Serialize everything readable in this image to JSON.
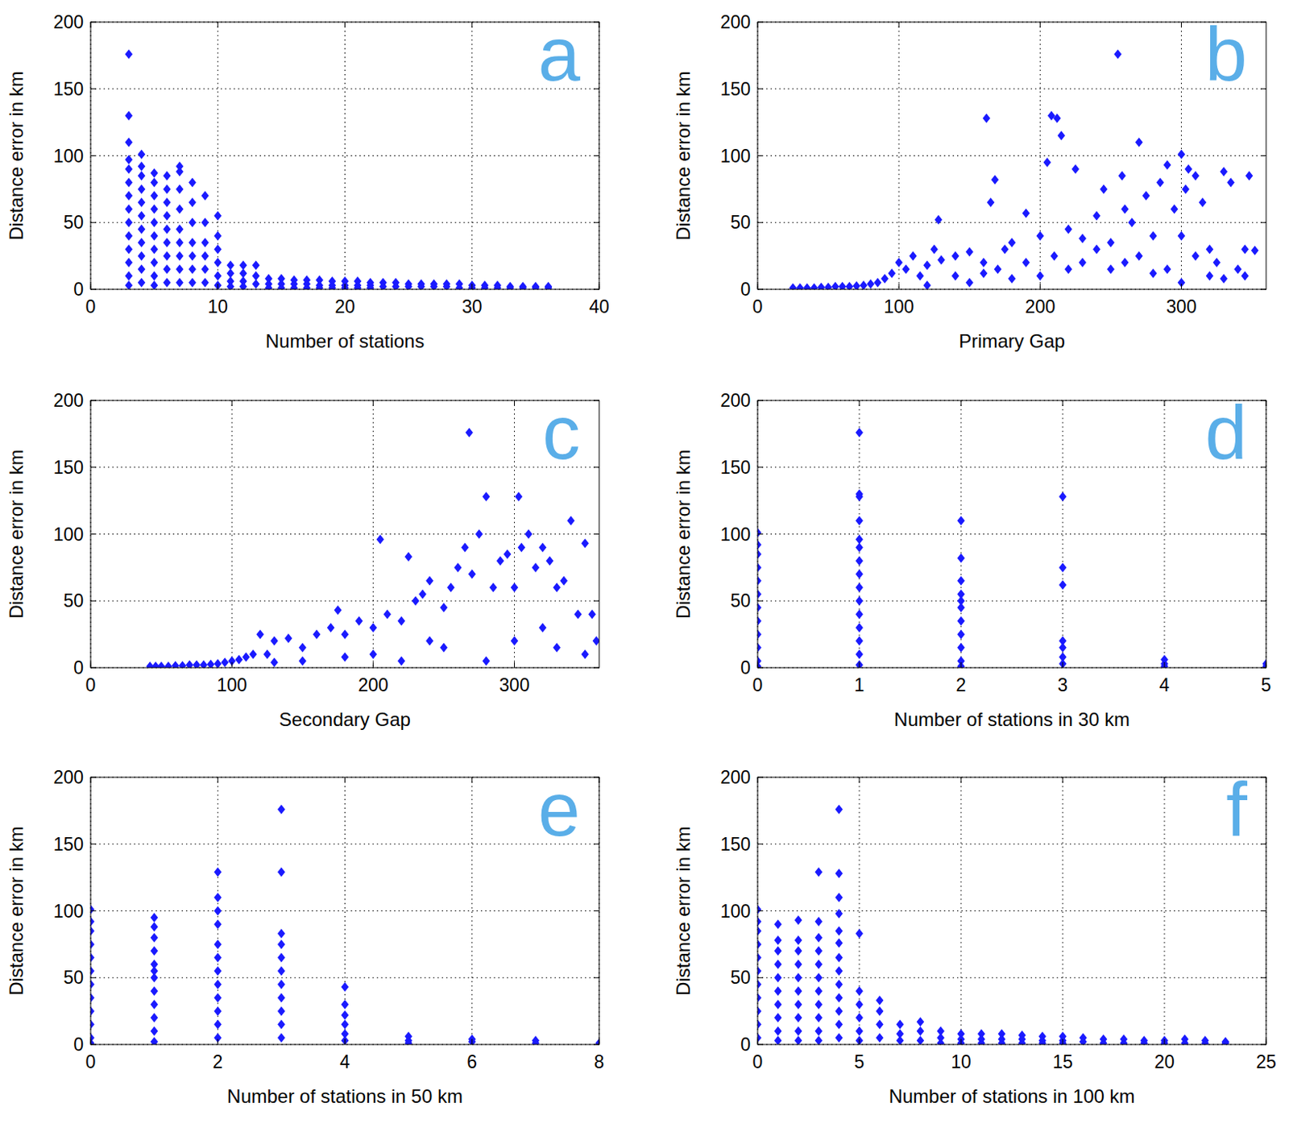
{
  "chart_data": [
    {
      "type": "scatter",
      "title": "a",
      "xlabel": "Number of stations",
      "ylabel": "Distance error in km",
      "marker": "diamond",
      "color": "#1a1aff",
      "grid": true,
      "xlim": [
        0,
        40
      ],
      "xticks": [
        0,
        10,
        20,
        30,
        40
      ],
      "ylim": [
        0,
        200
      ],
      "yticks": [
        0,
        50,
        100,
        150,
        200
      ],
      "x": [
        3,
        3,
        3,
        3,
        3,
        3,
        3,
        3,
        3,
        3,
        3,
        3,
        3,
        3,
        4,
        4,
        4,
        4,
        4,
        4,
        4,
        4,
        4,
        4,
        4,
        5,
        5,
        5,
        5,
        5,
        5,
        5,
        5,
        5,
        5,
        6,
        6,
        6,
        6,
        6,
        6,
        6,
        6,
        6,
        7,
        7,
        7,
        7,
        7,
        7,
        7,
        7,
        7,
        8,
        8,
        8,
        8,
        8,
        8,
        8,
        9,
        9,
        9,
        9,
        9,
        9,
        10,
        10,
        10,
        10,
        10,
        10,
        11,
        11,
        11,
        11,
        12,
        12,
        12,
        12,
        13,
        13,
        13,
        14,
        14,
        14,
        15,
        15,
        15,
        16,
        16,
        16,
        17,
        17,
        17,
        18,
        18,
        18,
        19,
        19,
        19,
        20,
        20,
        20,
        21,
        21,
        21,
        22,
        22,
        22,
        23,
        23,
        24,
        24,
        25,
        25,
        26,
        26,
        27,
        27,
        28,
        28,
        29,
        29,
        30,
        30,
        31,
        31,
        32,
        32,
        33,
        33,
        34,
        34,
        35,
        35,
        36,
        36
      ],
      "values": [
        176,
        130,
        110,
        97,
        90,
        80,
        70,
        60,
        50,
        40,
        30,
        20,
        10,
        3,
        101,
        92,
        85,
        75,
        65,
        55,
        45,
        35,
        25,
        15,
        5,
        87,
        80,
        70,
        60,
        50,
        40,
        30,
        20,
        10,
        3,
        85,
        75,
        65,
        55,
        45,
        35,
        25,
        15,
        5,
        92,
        88,
        75,
        60,
        45,
        35,
        25,
        15,
        5,
        80,
        65,
        50,
        35,
        25,
        15,
        5,
        70,
        50,
        35,
        25,
        15,
        5,
        55,
        40,
        30,
        20,
        10,
        3,
        18,
        12,
        6,
        2,
        18,
        12,
        6,
        2,
        18,
        10,
        4,
        8,
        4,
        1,
        8,
        4,
        1,
        7,
        4,
        1,
        7,
        4,
        1,
        7,
        3,
        1,
        6,
        3,
        1,
        6,
        3,
        1,
        6,
        3,
        1,
        5,
        3,
        1,
        5,
        2,
        5,
        2,
        4,
        2,
        4,
        2,
        4,
        2,
        4,
        2,
        4,
        1,
        3,
        1,
        3,
        1,
        3,
        1,
        2,
        1,
        2,
        1,
        2,
        1,
        2,
        1
      ]
    },
    {
      "type": "scatter",
      "title": "b",
      "xlabel": "Primary Gap",
      "ylabel": "Distance error in km",
      "marker": "diamond",
      "color": "#1a1aff",
      "grid": true,
      "xlim": [
        0,
        360
      ],
      "xticks": [
        0,
        100,
        200,
        300
      ],
      "ylim": [
        0,
        200
      ],
      "yticks": [
        0,
        50,
        100,
        150,
        200
      ],
      "x": [
        25,
        30,
        35,
        40,
        45,
        50,
        55,
        60,
        65,
        70,
        75,
        80,
        85,
        90,
        95,
        100,
        105,
        110,
        115,
        120,
        125,
        128,
        130,
        140,
        150,
        160,
        162,
        165,
        168,
        175,
        180,
        190,
        200,
        205,
        208,
        212,
        215,
        220,
        225,
        230,
        240,
        245,
        250,
        255,
        258,
        260,
        265,
        270,
        275,
        280,
        285,
        290,
        295,
        300,
        303,
        305,
        310,
        315,
        320,
        325,
        330,
        335,
        340,
        345,
        348,
        352,
        120,
        150,
        180,
        200,
        230,
        250,
        280,
        300,
        310,
        330,
        345,
        140,
        160,
        170,
        190,
        210,
        220,
        240,
        260,
        270,
        290,
        300,
        320
      ],
      "values": [
        1,
        1,
        1,
        1,
        1.5,
        1.5,
        2,
        2,
        2,
        2.5,
        3,
        4,
        5,
        8,
        12,
        20,
        15,
        25,
        10,
        18,
        30,
        52,
        22,
        25,
        28,
        20,
        128,
        65,
        82,
        30,
        35,
        57,
        40,
        95,
        130,
        128,
        115,
        45,
        90,
        38,
        55,
        75,
        35,
        176,
        85,
        60,
        50,
        110,
        70,
        40,
        80,
        93,
        60,
        101,
        75,
        90,
        85,
        65,
        30,
        20,
        88,
        80,
        15,
        30,
        85,
        29,
        3,
        5,
        8,
        10,
        20,
        15,
        12,
        5,
        25,
        8,
        10,
        10,
        12,
        15,
        20,
        25,
        15,
        30,
        20,
        25,
        15,
        40,
        10
      ]
    },
    {
      "type": "scatter",
      "title": "c",
      "xlabel": "Secondary Gap",
      "ylabel": "Distance error in km",
      "marker": "diamond",
      "color": "#1a1aff",
      "grid": true,
      "xlim": [
        0,
        360
      ],
      "xticks": [
        0,
        100,
        200,
        300
      ],
      "ylim": [
        0,
        200
      ],
      "yticks": [
        0,
        50,
        100,
        150,
        200
      ],
      "x": [
        42,
        46,
        50,
        55,
        60,
        65,
        70,
        75,
        80,
        85,
        90,
        95,
        100,
        105,
        110,
        115,
        120,
        125,
        130,
        140,
        150,
        160,
        170,
        175,
        180,
        190,
        200,
        205,
        210,
        220,
        225,
        230,
        235,
        240,
        250,
        255,
        260,
        265,
        268,
        270,
        275,
        280,
        285,
        290,
        295,
        300,
        303,
        305,
        310,
        315,
        320,
        325,
        330,
        335,
        340,
        345,
        350,
        355,
        358,
        130,
        150,
        180,
        200,
        220,
        240,
        250,
        280,
        300,
        320,
        330,
        350
      ],
      "values": [
        1,
        1,
        1,
        1,
        1.5,
        1.5,
        2,
        2,
        2,
        2.5,
        3,
        4,
        5,
        6,
        8,
        10,
        25,
        10,
        20,
        22,
        15,
        25,
        30,
        43,
        25,
        35,
        30,
        96,
        40,
        35,
        83,
        50,
        55,
        65,
        45,
        60,
        75,
        90,
        176,
        70,
        100,
        128,
        60,
        80,
        85,
        60,
        128,
        90,
        100,
        75,
        90,
        80,
        60,
        65,
        110,
        40,
        93,
        40,
        20,
        4,
        5,
        8,
        10,
        5,
        20,
        15,
        5,
        20,
        30,
        15,
        10
      ]
    },
    {
      "type": "scatter",
      "title": "d",
      "xlabel": "Number of stations in 30 km",
      "ylabel": "Distance error in km",
      "marker": "diamond",
      "color": "#1a1aff",
      "grid": true,
      "xlim": [
        0,
        5
      ],
      "xticks": [
        0,
        1,
        2,
        3,
        4,
        5
      ],
      "ylim": [
        0,
        200
      ],
      "yticks": [
        0,
        50,
        100,
        150,
        200
      ],
      "x": [
        0,
        0,
        0,
        0,
        0,
        0,
        0,
        0,
        0,
        0,
        0,
        0,
        1,
        1,
        1,
        1,
        1,
        1,
        1,
        1,
        1,
        1,
        1,
        1,
        1,
        1,
        1,
        2,
        2,
        2,
        2,
        2,
        2,
        2,
        2,
        2,
        2,
        2,
        3,
        3,
        3,
        3,
        3,
        3,
        3,
        4,
        4,
        4,
        5,
        5
      ],
      "values": [
        101,
        92,
        85,
        75,
        65,
        55,
        45,
        35,
        25,
        15,
        5,
        1,
        176,
        130,
        128,
        110,
        96,
        90,
        80,
        70,
        60,
        50,
        40,
        30,
        20,
        10,
        2,
        110,
        82,
        65,
        55,
        50,
        45,
        35,
        25,
        15,
        5,
        1,
        128,
        75,
        62,
        20,
        15,
        8,
        3,
        6,
        3,
        1,
        3,
        1
      ]
    },
    {
      "type": "scatter",
      "title": "e",
      "xlabel": "Number of stations in 50 km",
      "ylabel": "Distance error in km",
      "marker": "diamond",
      "color": "#1a1aff",
      "grid": true,
      "xlim": [
        0,
        8
      ],
      "xticks": [
        0,
        2,
        4,
        6,
        8
      ],
      "ylim": [
        0,
        200
      ],
      "yticks": [
        0,
        50,
        100,
        150,
        200
      ],
      "x": [
        0,
        0,
        0,
        0,
        0,
        0,
        0,
        0,
        0,
        0,
        0,
        0,
        1,
        1,
        1,
        1,
        1,
        1,
        1,
        1,
        1,
        1,
        1,
        1,
        2,
        2,
        2,
        2,
        2,
        2,
        2,
        2,
        2,
        2,
        2,
        2,
        3,
        3,
        3,
        3,
        3,
        3,
        3,
        3,
        3,
        3,
        3,
        4,
        4,
        4,
        4,
        4,
        4,
        5,
        5,
        5,
        6,
        6,
        7,
        7,
        8
      ],
      "values": [
        101,
        92,
        85,
        75,
        65,
        55,
        45,
        35,
        25,
        15,
        5,
        1,
        95,
        88,
        80,
        70,
        60,
        55,
        50,
        40,
        30,
        20,
        10,
        2,
        129,
        110,
        100,
        90,
        75,
        65,
        55,
        45,
        35,
        25,
        15,
        5,
        176,
        129,
        83,
        75,
        65,
        55,
        45,
        35,
        25,
        15,
        5,
        43,
        30,
        22,
        15,
        8,
        3,
        6,
        3,
        1,
        4,
        2,
        3,
        1,
        1
      ]
    },
    {
      "type": "scatter",
      "title": "f",
      "xlabel": "Number of stations in 100 km",
      "ylabel": "Distance error in km",
      "marker": "diamond",
      "color": "#1a1aff",
      "grid": true,
      "xlim": [
        0,
        25
      ],
      "xticks": [
        0,
        5,
        10,
        15,
        20,
        25
      ],
      "ylim": [
        0,
        200
      ],
      "yticks": [
        0,
        50,
        100,
        150,
        200
      ],
      "x": [
        0,
        0,
        0,
        0,
        0,
        0,
        0,
        0,
        0,
        0,
        0,
        1,
        1,
        1,
        1,
        1,
        1,
        1,
        1,
        1,
        1,
        2,
        2,
        2,
        2,
        2,
        2,
        2,
        2,
        2,
        2,
        3,
        3,
        3,
        3,
        3,
        3,
        3,
        3,
        3,
        3,
        3,
        4,
        4,
        4,
        4,
        4,
        4,
        4,
        4,
        4,
        4,
        4,
        4,
        4,
        5,
        5,
        5,
        5,
        5,
        5,
        6,
        6,
        6,
        6,
        7,
        7,
        7,
        8,
        8,
        8,
        9,
        9,
        9,
        10,
        10,
        10,
        11,
        11,
        11,
        12,
        12,
        12,
        13,
        13,
        13,
        14,
        14,
        14,
        15,
        15,
        15,
        16,
        16,
        17,
        17,
        18,
        18,
        19,
        19,
        20,
        20,
        21,
        21,
        22,
        22,
        23,
        23
      ],
      "values": [
        101,
        92,
        85,
        75,
        65,
        55,
        45,
        35,
        25,
        15,
        5,
        90,
        78,
        70,
        60,
        50,
        40,
        30,
        20,
        10,
        3,
        93,
        78,
        70,
        60,
        50,
        40,
        30,
        20,
        10,
        3,
        129,
        92,
        80,
        70,
        60,
        50,
        40,
        30,
        20,
        10,
        3,
        176,
        128,
        110,
        98,
        85,
        76,
        65,
        55,
        45,
        35,
        25,
        15,
        5,
        83,
        40,
        30,
        20,
        10,
        3,
        33,
        25,
        15,
        5,
        15,
        8,
        3,
        17,
        10,
        3,
        10,
        5,
        1,
        8,
        4,
        1,
        8,
        4,
        1,
        8,
        4,
        1,
        7,
        4,
        1,
        6,
        3,
        1,
        6,
        3,
        1,
        5,
        2,
        4,
        1,
        4,
        1,
        3,
        1,
        3,
        1,
        4,
        1,
        3,
        1,
        2,
        1
      ]
    }
  ]
}
